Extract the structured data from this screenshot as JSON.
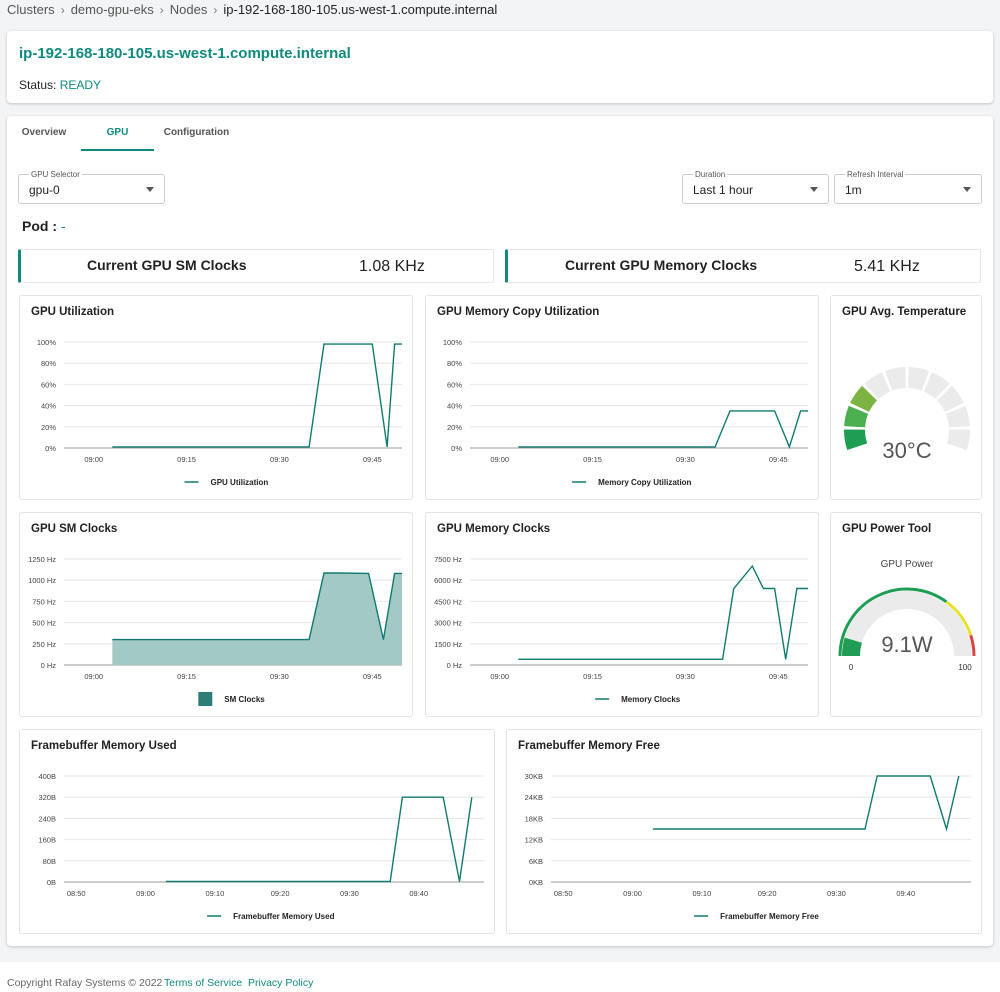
{
  "breadcrumb": [
    "Clusters",
    "demo-gpu-eks",
    "Nodes",
    "ip-192-168-180-105.us-west-1.compute.internal"
  ],
  "node": {
    "title": "ip-192-168-180-105.us-west-1.compute.internal",
    "status_label": "Status:",
    "status_value": "READY"
  },
  "tabs": [
    "Overview",
    "GPU",
    "Configuration"
  ],
  "active_tab": "GPU",
  "gpu_selector": {
    "label": "GPU Selector",
    "value": "gpu-0"
  },
  "duration": {
    "label": "Duration",
    "value": "Last 1 hour"
  },
  "refresh": {
    "label": "Refresh Interval",
    "value": "1m"
  },
  "pod": {
    "label": "Pod :",
    "value": "-"
  },
  "stats": [
    {
      "name": "Current GPU SM Clocks",
      "value": "1.08 KHz"
    },
    {
      "name": "Current GPU Memory Clocks",
      "value": "5.41 KHz"
    }
  ],
  "colors": {
    "accent": "#0e8a7e",
    "line": "#117a70",
    "area": "#a3c9c5",
    "gauge_bg": "#ebebeb"
  },
  "charts": [
    {
      "id": "gpu_util",
      "title": "GPU Utilization"
    },
    {
      "id": "mem_copy",
      "title": "GPU Memory Copy Utilization"
    },
    {
      "id": "sm_clocks",
      "title": "GPU SM Clocks"
    },
    {
      "id": "mem_clocks",
      "title": "GPU Memory Clocks"
    },
    {
      "id": "fb_used",
      "title": "Framebuffer Memory Used"
    },
    {
      "id": "fb_free",
      "title": "Framebuffer Memory Free"
    }
  ],
  "temperature": {
    "title": "GPU Avg. Temperature",
    "value": "30°C",
    "level": 0.3
  },
  "power": {
    "title": "GPU Power Tool",
    "subtitle": "GPU Power",
    "value": "9.1W",
    "min": "0",
    "max": "100",
    "level": 0.091
  },
  "chart_data": [
    {
      "type": "line",
      "title": "GPU Utilization",
      "legend": [
        "GPU Utilization"
      ],
      "ylim": [
        0,
        100
      ],
      "yticks": [
        "100%",
        "80%",
        "60%",
        "40%",
        "20%",
        "0%"
      ],
      "xlim": [
        8.92,
        9.83
      ],
      "xticks": [
        {
          "at": 9.0,
          "label": "09:00"
        },
        {
          "at": 9.25,
          "label": "09:15"
        },
        {
          "at": 9.5,
          "label": "09:30"
        },
        {
          "at": 9.75,
          "label": "09:45"
        }
      ],
      "series": [
        {
          "name": "GPU Utilization",
          "x": [
            9.05,
            9.58,
            9.62,
            9.7,
            9.75,
            9.79,
            9.81,
            9.85
          ],
          "y": [
            1,
            1,
            98,
            98,
            98,
            1,
            98,
            98
          ]
        }
      ]
    },
    {
      "type": "line",
      "title": "GPU Memory Copy Utilization",
      "legend": [
        "Memory Copy Utilization"
      ],
      "ylim": [
        0,
        100
      ],
      "yticks": [
        "100%",
        "80%",
        "60%",
        "40%",
        "20%",
        "0%"
      ],
      "xlim": [
        8.92,
        9.83
      ],
      "xticks": [
        {
          "at": 9.0,
          "label": "09:00"
        },
        {
          "at": 9.25,
          "label": "09:15"
        },
        {
          "at": 9.5,
          "label": "09:30"
        },
        {
          "at": 9.75,
          "label": "09:45"
        }
      ],
      "series": [
        {
          "name": "Memory Copy Utilization",
          "x": [
            9.05,
            9.58,
            9.62,
            9.7,
            9.74,
            9.78,
            9.81,
            9.85
          ],
          "y": [
            1,
            1,
            35,
            35,
            35,
            1,
            35,
            35
          ]
        }
      ]
    },
    {
      "type": "area",
      "title": "GPU SM Clocks",
      "legend": [
        "SM Clocks"
      ],
      "ylim": [
        0,
        1250
      ],
      "yticks": [
        "1250 Hz",
        "1000 Hz",
        "750 Hz",
        "500 Hz",
        "250 Hz",
        "0 Hz"
      ],
      "xlim": [
        8.92,
        9.83
      ],
      "xticks": [
        {
          "at": 9.0,
          "label": "09:00"
        },
        {
          "at": 9.25,
          "label": "09:15"
        },
        {
          "at": 9.5,
          "label": "09:30"
        },
        {
          "at": 9.75,
          "label": "09:45"
        }
      ],
      "series": [
        {
          "name": "SM Clocks",
          "x": [
            9.05,
            9.58,
            9.62,
            9.66,
            9.74,
            9.78,
            9.81,
            9.85
          ],
          "y": [
            300,
            300,
            1085,
            1085,
            1080,
            300,
            1080,
            1080
          ]
        }
      ]
    },
    {
      "type": "line",
      "title": "GPU Memory Clocks",
      "legend": [
        "Memory Clocks"
      ],
      "ylim": [
        0,
        7500
      ],
      "yticks": [
        "7500 Hz",
        "6000 Hz",
        "4500 Hz",
        "3000 Hz",
        "1500 Hz",
        "0 Hz"
      ],
      "xlim": [
        8.92,
        9.83
      ],
      "xticks": [
        {
          "at": 9.0,
          "label": "09:00"
        },
        {
          "at": 9.25,
          "label": "09:15"
        },
        {
          "at": 9.5,
          "label": "09:30"
        },
        {
          "at": 9.75,
          "label": "09:45"
        }
      ],
      "series": [
        {
          "name": "Memory Clocks",
          "x": [
            9.05,
            9.6,
            9.63,
            9.68,
            9.71,
            9.74,
            9.77,
            9.8,
            9.85
          ],
          "y": [
            405,
            405,
            5400,
            7000,
            5410,
            5410,
            405,
            5410,
            5410
          ]
        }
      ]
    },
    {
      "type": "line",
      "title": "Framebuffer Memory Used",
      "legend": [
        "Framebuffer Memory Used"
      ],
      "ylim": [
        0,
        400
      ],
      "yticks": [
        "400B",
        "320B",
        "240B",
        "160B",
        "80B",
        "0B"
      ],
      "xlim": [
        8.8,
        9.83
      ],
      "xticks": [
        {
          "at": 8.83,
          "label": "08:50"
        },
        {
          "at": 9.0,
          "label": "09:00"
        },
        {
          "at": 9.17,
          "label": "09:10"
        },
        {
          "at": 9.33,
          "label": "09:20"
        },
        {
          "at": 9.5,
          "label": "09:30"
        },
        {
          "at": 9.67,
          "label": "09:40"
        }
      ],
      "series": [
        {
          "name": "Framebuffer Memory Used",
          "x": [
            9.05,
            9.6,
            9.63,
            9.7,
            9.73,
            9.77,
            9.8
          ],
          "y": [
            2,
            2,
            320,
            320,
            320,
            2,
            320
          ]
        }
      ]
    },
    {
      "type": "line",
      "title": "Framebuffer Memory Free",
      "legend": [
        "Framebuffer Memory Free"
      ],
      "ylim": [
        0,
        30
      ],
      "yticks": [
        "30KB",
        "24KB",
        "18KB",
        "12KB",
        "6KB",
        "0KB"
      ],
      "xlim": [
        8.8,
        9.83
      ],
      "xticks": [
        {
          "at": 8.83,
          "label": "08:50"
        },
        {
          "at": 9.0,
          "label": "09:00"
        },
        {
          "at": 9.17,
          "label": "09:10"
        },
        {
          "at": 9.33,
          "label": "09:20"
        },
        {
          "at": 9.5,
          "label": "09:30"
        },
        {
          "at": 9.67,
          "label": "09:40"
        }
      ],
      "series": [
        {
          "name": "Framebuffer Memory Free",
          "x": [
            9.05,
            9.57,
            9.6,
            9.7,
            9.73,
            9.77,
            9.8
          ],
          "y": [
            15,
            15,
            30,
            30,
            30,
            15,
            30
          ]
        }
      ]
    }
  ],
  "footer": {
    "copyright": "Copyright Rafay Systems © 2022",
    "terms": "Terms of Service",
    "privacy": "Privacy Policy"
  }
}
